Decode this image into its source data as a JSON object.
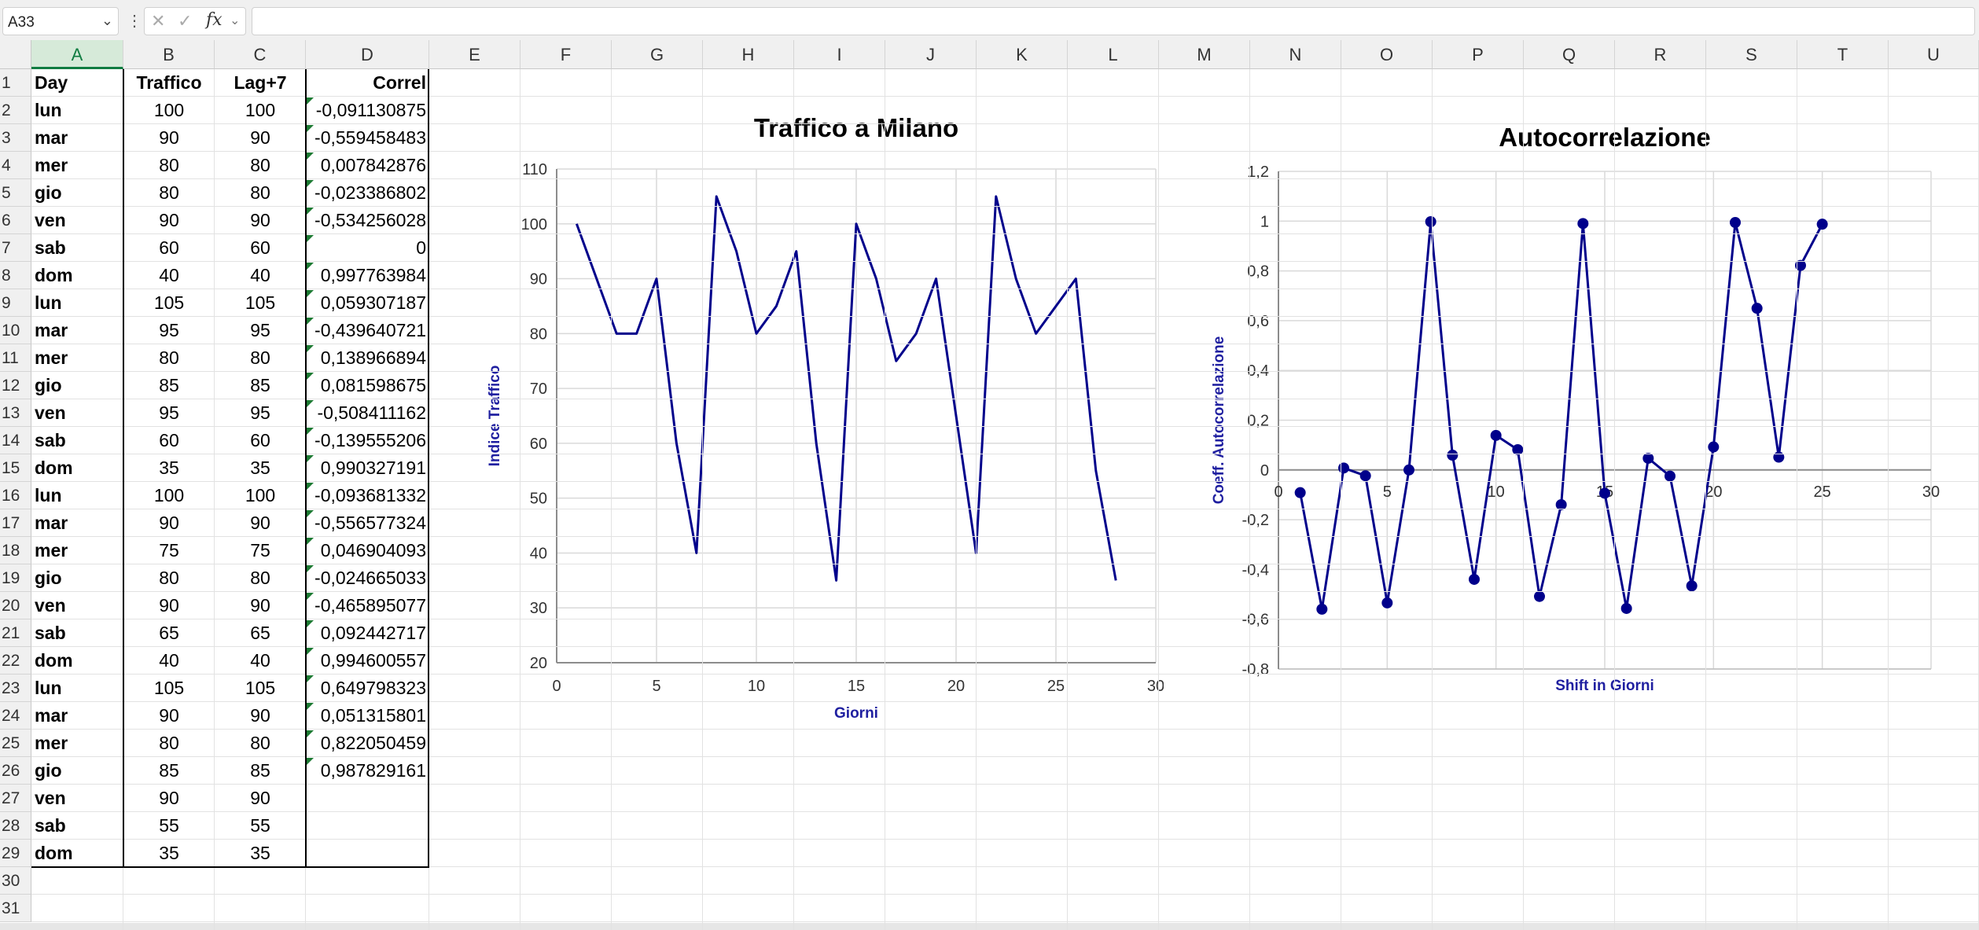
{
  "formula_bar": {
    "name_box": "A33",
    "formula": "",
    "fx_label": "fx"
  },
  "columns": [
    "A",
    "B",
    "C",
    "D",
    "E",
    "F",
    "G",
    "H",
    "I",
    "J",
    "K",
    "L",
    "M",
    "N",
    "O",
    "P",
    "Q",
    "R",
    "S",
    "T",
    "U"
  ],
  "selected_column": "A",
  "rows": [
    "1",
    "2",
    "3",
    "4",
    "5",
    "6",
    "7",
    "8",
    "9",
    "10",
    "11",
    "12",
    "13",
    "14",
    "15",
    "16",
    "17",
    "18",
    "19",
    "20",
    "21",
    "22",
    "23",
    "24",
    "25",
    "26",
    "27",
    "28",
    "29",
    "30",
    "31"
  ],
  "table": {
    "headers": [
      "Day",
      "Traffico",
      "Lag+7",
      "Correl"
    ],
    "day": [
      "lun",
      "mar",
      "mer",
      "gio",
      "ven",
      "sab",
      "dom",
      "lun",
      "mar",
      "mer",
      "gio",
      "ven",
      "sab",
      "dom",
      "lun",
      "mar",
      "mer",
      "gio",
      "ven",
      "sab",
      "dom",
      "lun",
      "mar",
      "mer",
      "gio",
      "ven",
      "sab",
      "dom"
    ],
    "traffico": [
      "100",
      "90",
      "80",
      "80",
      "90",
      "60",
      "40",
      "105",
      "95",
      "80",
      "85",
      "95",
      "60",
      "35",
      "100",
      "90",
      "75",
      "80",
      "90",
      "65",
      "40",
      "105",
      "90",
      "80",
      "85",
      "90",
      "55",
      "35"
    ],
    "lag7": [
      "100",
      "90",
      "80",
      "80",
      "90",
      "60",
      "40",
      "105",
      "95",
      "80",
      "85",
      "95",
      "60",
      "35",
      "100",
      "90",
      "75",
      "80",
      "90",
      "65",
      "40",
      "105",
      "90",
      "80",
      "85",
      "90",
      "55",
      "35"
    ],
    "correl": [
      "-0,091130875",
      "-0,559458483",
      "0,007842876",
      "-0,023386802",
      "-0,534256028",
      "0",
      "0,997763984",
      "0,059307187",
      "-0,439640721",
      "0,138966894",
      "0,081598675",
      "-0,508411162",
      "-0,139555206",
      "0,990327191",
      "-0,093681332",
      "-0,556577324",
      "0,046904093",
      "-0,024665033",
      "-0,465895077",
      "0,092442717",
      "0,994600557",
      "0,649798323",
      "0,051315801",
      "0,822050459",
      "0,987829161"
    ]
  },
  "chart_data": [
    {
      "type": "line",
      "title": "Traffico a Milano",
      "xlabel": "Giorni",
      "ylabel": "Indice Traffico",
      "xlim": [
        0,
        30
      ],
      "ylim": [
        20,
        110
      ],
      "xticks": [
        "0",
        "5",
        "10",
        "15",
        "20",
        "25",
        "30"
      ],
      "yticks": [
        "20",
        "30",
        "40",
        "50",
        "60",
        "70",
        "80",
        "90",
        "100",
        "110"
      ],
      "grid": true,
      "markers": false,
      "color": "#00008b",
      "x": [
        1,
        2,
        3,
        4,
        5,
        6,
        7,
        8,
        9,
        10,
        11,
        12,
        13,
        14,
        15,
        16,
        17,
        18,
        19,
        20,
        21,
        22,
        23,
        24,
        25,
        26,
        27,
        28
      ],
      "y": [
        100,
        90,
        80,
        80,
        90,
        60,
        40,
        105,
        95,
        80,
        85,
        95,
        60,
        35,
        100,
        90,
        75,
        80,
        90,
        65,
        40,
        105,
        90,
        80,
        85,
        90,
        55,
        35
      ]
    },
    {
      "type": "line",
      "title": "Autocorrelazione",
      "xlabel": "Shift in Giorni",
      "ylabel": "Coeff. Autocorrelazione",
      "xlim": [
        0,
        30
      ],
      "ylim": [
        -0.8,
        1.2
      ],
      "xticks": [
        "0",
        "5",
        "10",
        "15",
        "20",
        "25",
        "30"
      ],
      "yticks": [
        "-0,8",
        "-0,6",
        "-0,4",
        "-0,2",
        "0",
        "0,2",
        "0,4",
        "0,6",
        "0,8",
        "1",
        "1,2"
      ],
      "grid": true,
      "markers": true,
      "color": "#00008b",
      "x": [
        1,
        2,
        3,
        4,
        5,
        6,
        7,
        8,
        9,
        10,
        11,
        12,
        13,
        14,
        15,
        16,
        17,
        18,
        19,
        20,
        21,
        22,
        23,
        24,
        25
      ],
      "y": [
        -0.091130875,
        -0.559458483,
        0.007842876,
        -0.023386802,
        -0.534256028,
        0,
        0.997763984,
        0.059307187,
        -0.439640721,
        0.138966894,
        0.081598675,
        -0.508411162,
        -0.139555206,
        0.990327191,
        -0.093681332,
        -0.556577324,
        0.046904093,
        -0.024665033,
        -0.465895077,
        0.092442717,
        0.994600557,
        0.649798323,
        0.051315801,
        0.822050459,
        0.987829161
      ]
    }
  ]
}
